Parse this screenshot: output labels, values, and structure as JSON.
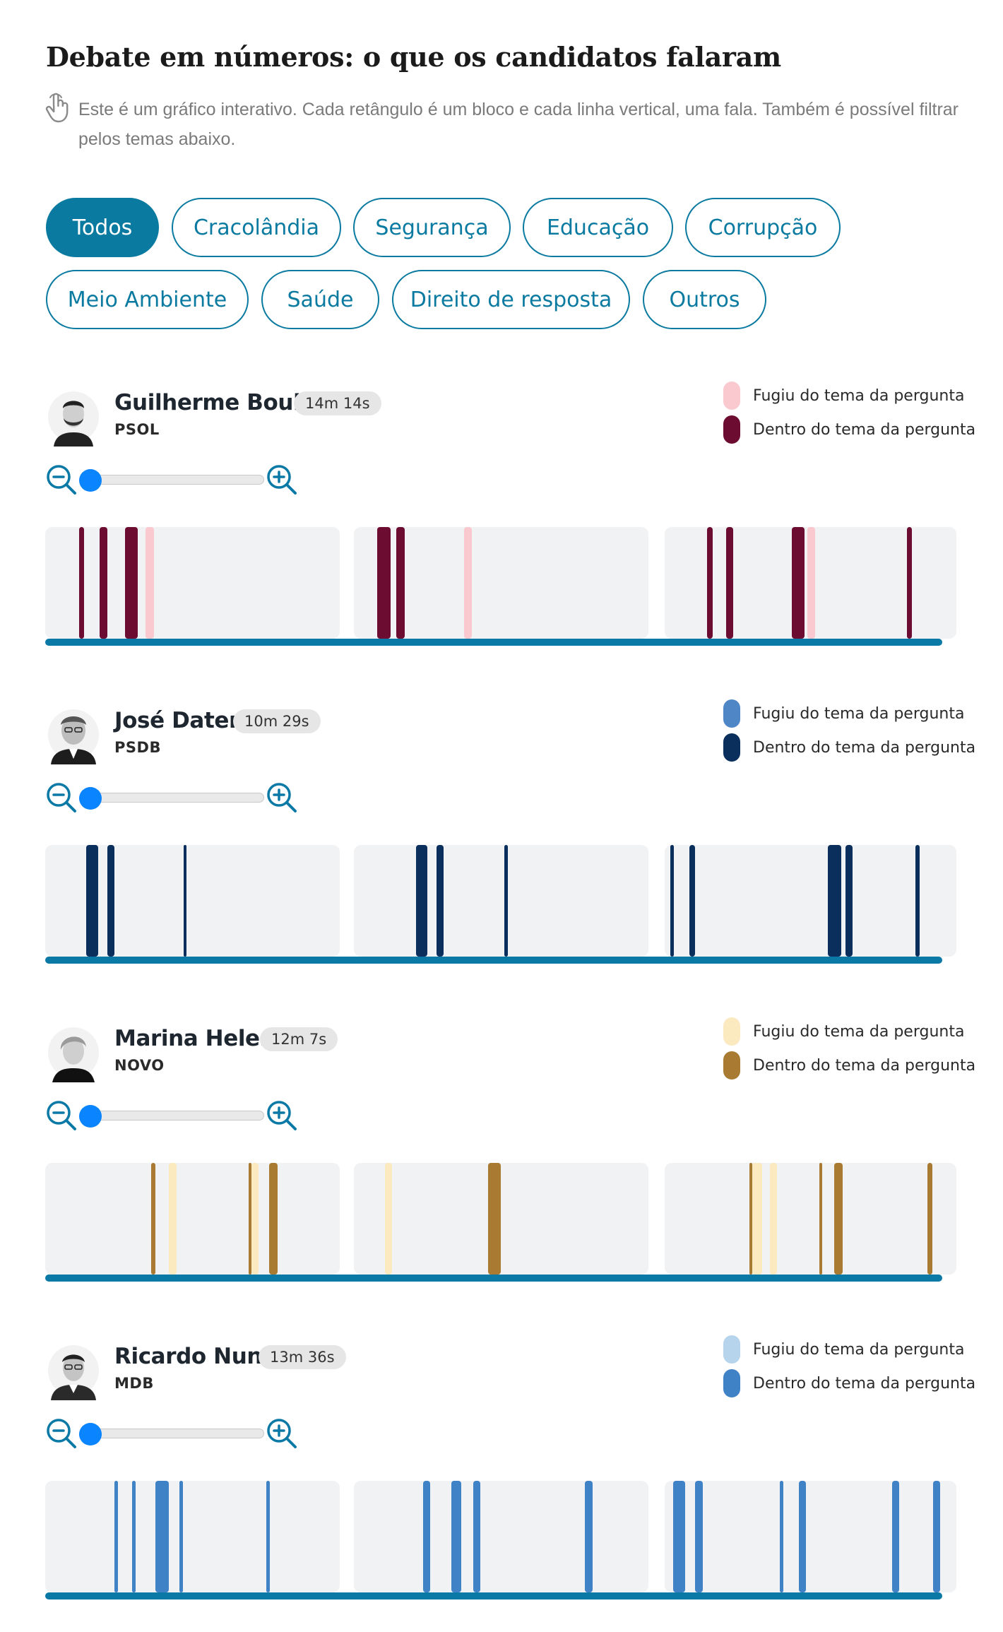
{
  "header": {
    "title": "Debate em números: o que os candidatos falaram",
    "subtitle": "Este é um gráfico interativo. Cada retângulo é um bloco e cada linha vertical, uma fala. Também é possível filtrar pelos temas abaixo."
  },
  "filters": [
    {
      "label": "Todos",
      "active": true
    },
    {
      "label": "Cracolândia",
      "active": false
    },
    {
      "label": "Segurança",
      "active": false
    },
    {
      "label": "Educação",
      "active": false
    },
    {
      "label": "Corrupção",
      "active": false
    },
    {
      "label": "Meio Ambiente",
      "active": false
    },
    {
      "label": "Saúde",
      "active": false
    },
    {
      "label": "Direito de resposta",
      "active": false
    },
    {
      "label": "Outros",
      "active": false
    }
  ],
  "legend_labels": {
    "off_topic": "Fugiu do tema da pergunta",
    "on_topic": "Dentro do tema da pergunta"
  },
  "candidates": [
    {
      "name": "Guilherme Boulos",
      "duration": "14m 14s",
      "party": "PSOL",
      "colors": {
        "off_topic": "#f9c9cf",
        "on_topic": "#6b0c30"
      },
      "zoom_level": 0,
      "blocks": [
        {
          "speeches": [
            {
              "pos": 0.115,
              "w": 0.018,
              "type": "on"
            },
            {
              "pos": 0.185,
              "w": 0.025,
              "type": "on"
            },
            {
              "pos": 0.27,
              "w": 0.045,
              "type": "on"
            },
            {
              "pos": 0.34,
              "w": 0.03,
              "type": "off"
            }
          ]
        },
        {
          "speeches": [
            {
              "pos": 0.08,
              "w": 0.045,
              "type": "on"
            },
            {
              "pos": 0.145,
              "w": 0.028,
              "type": "on"
            },
            {
              "pos": 0.375,
              "w": 0.025,
              "type": "off"
            }
          ]
        },
        {
          "speeches": [
            {
              "pos": 0.145,
              "w": 0.02,
              "type": "on"
            },
            {
              "pos": 0.21,
              "w": 0.025,
              "type": "on"
            },
            {
              "pos": 0.435,
              "w": 0.045,
              "type": "on"
            },
            {
              "pos": 0.49,
              "w": 0.025,
              "type": "off"
            },
            {
              "pos": 0.83,
              "w": 0.018,
              "type": "on"
            }
          ]
        }
      ]
    },
    {
      "name": "José Datena",
      "duration": "10m 29s",
      "party": "PSDB",
      "colors": {
        "off_topic": "#4f86c6",
        "on_topic": "#0a2f5c"
      },
      "zoom_level": 0,
      "blocks": [
        {
          "speeches": [
            {
              "pos": 0.14,
              "w": 0.04,
              "type": "on"
            },
            {
              "pos": 0.21,
              "w": 0.025,
              "type": "on"
            },
            {
              "pos": 0.47,
              "w": 0.01,
              "type": "on"
            }
          ]
        },
        {
          "speeches": [
            {
              "pos": 0.21,
              "w": 0.04,
              "type": "on"
            },
            {
              "pos": 0.28,
              "w": 0.025,
              "type": "on"
            },
            {
              "pos": 0.51,
              "w": 0.012,
              "type": "on"
            }
          ]
        },
        {
          "speeches": [
            {
              "pos": 0.02,
              "w": 0.012,
              "type": "on"
            },
            {
              "pos": 0.085,
              "w": 0.02,
              "type": "on"
            },
            {
              "pos": 0.56,
              "w": 0.045,
              "type": "on"
            },
            {
              "pos": 0.62,
              "w": 0.025,
              "type": "on"
            },
            {
              "pos": 0.86,
              "w": 0.015,
              "type": "on"
            }
          ]
        }
      ]
    },
    {
      "name": "Marina Helena",
      "duration": "12m 7s",
      "party": "NOVO",
      "colors": {
        "off_topic": "#fbeac0",
        "on_topic": "#a97b32"
      },
      "zoom_level": 0,
      "blocks": [
        {
          "speeches": [
            {
              "pos": 0.36,
              "w": 0.015,
              "type": "on"
            },
            {
              "pos": 0.42,
              "w": 0.025,
              "type": "off"
            },
            {
              "pos": 0.69,
              "w": 0.01,
              "type": "on"
            },
            {
              "pos": 0.7,
              "w": 0.025,
              "type": "off"
            },
            {
              "pos": 0.76,
              "w": 0.03,
              "type": "on"
            }
          ]
        },
        {
          "speeches": [
            {
              "pos": 0.105,
              "w": 0.025,
              "type": "off"
            },
            {
              "pos": 0.455,
              "w": 0.045,
              "type": "on"
            }
          ]
        },
        {
          "speeches": [
            {
              "pos": 0.29,
              "w": 0.01,
              "type": "on"
            },
            {
              "pos": 0.3,
              "w": 0.035,
              "type": "off"
            },
            {
              "pos": 0.36,
              "w": 0.025,
              "type": "off"
            },
            {
              "pos": 0.53,
              "w": 0.01,
              "type": "on"
            },
            {
              "pos": 0.58,
              "w": 0.03,
              "type": "on"
            },
            {
              "pos": 0.9,
              "w": 0.018,
              "type": "on"
            }
          ]
        }
      ]
    },
    {
      "name": "Ricardo Nunes",
      "duration": "13m 36s",
      "party": "MDB",
      "colors": {
        "off_topic": "#b6d4ec",
        "on_topic": "#3f82c6"
      },
      "zoom_level": 0,
      "blocks": [
        {
          "speeches": [
            {
              "pos": 0.235,
              "w": 0.012,
              "type": "on"
            },
            {
              "pos": 0.295,
              "w": 0.012,
              "type": "on"
            },
            {
              "pos": 0.375,
              "w": 0.045,
              "type": "on"
            },
            {
              "pos": 0.455,
              "w": 0.012,
              "type": "on"
            },
            {
              "pos": 0.75,
              "w": 0.012,
              "type": "on"
            }
          ]
        },
        {
          "speeches": [
            {
              "pos": 0.235,
              "w": 0.025,
              "type": "on"
            },
            {
              "pos": 0.33,
              "w": 0.035,
              "type": "on"
            },
            {
              "pos": 0.405,
              "w": 0.025,
              "type": "on"
            },
            {
              "pos": 0.785,
              "w": 0.025,
              "type": "on"
            }
          ]
        },
        {
          "speeches": [
            {
              "pos": 0.03,
              "w": 0.04,
              "type": "on"
            },
            {
              "pos": 0.105,
              "w": 0.025,
              "type": "on"
            },
            {
              "pos": 0.395,
              "w": 0.012,
              "type": "on"
            },
            {
              "pos": 0.46,
              "w": 0.025,
              "type": "on"
            },
            {
              "pos": 0.78,
              "w": 0.025,
              "type": "on"
            },
            {
              "pos": 0.92,
              "w": 0.025,
              "type": "on"
            }
          ]
        }
      ]
    }
  ]
}
